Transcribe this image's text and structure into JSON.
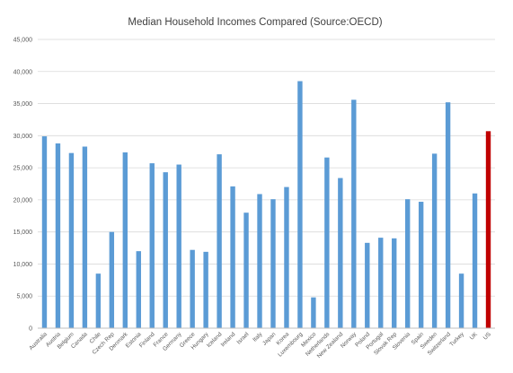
{
  "chart_data": {
    "type": "bar",
    "title": "Median Household Incomes Compared (Source:OECD)",
    "xlabel": "",
    "ylabel": "",
    "ylim": [
      0,
      45000
    ],
    "yticks": [
      "0",
      "5,000",
      "10,000",
      "15,000",
      "20,000",
      "25,000",
      "30,000",
      "35,000",
      "40,000",
      "45,000"
    ],
    "ytick_values": [
      0,
      5000,
      10000,
      15000,
      20000,
      25000,
      30000,
      35000,
      40000,
      45000
    ],
    "grid": true,
    "legend": "none",
    "categories": [
      "Australia",
      "Austria",
      "Belgium",
      "Canada",
      "Chile",
      "Czech Rep",
      "Denmark",
      "Estonia",
      "Finland",
      "France",
      "Germany",
      "Greece",
      "Hungary",
      "Iceland",
      "Ireland",
      "Israel",
      "Italy",
      "Japan",
      "Korea",
      "Luxembourg",
      "Mexico",
      "Netherlands",
      "New Zealand",
      "Norway",
      "Poland",
      "Portugal",
      "Slovak Rep",
      "Slovenia",
      "Spain",
      "Sweden",
      "Switzerland",
      "Turkey",
      "UK",
      "US"
    ],
    "values": [
      29900,
      28800,
      27300,
      28300,
      8500,
      15000,
      27400,
      12000,
      25700,
      24300,
      25500,
      12200,
      11900,
      27100,
      22100,
      18000,
      20900,
      20100,
      22000,
      38500,
      4800,
      26600,
      23400,
      35600,
      13300,
      14100,
      14000,
      20100,
      19700,
      27200,
      35200,
      8500,
      21000,
      30700
    ],
    "colors": {
      "bar": "#5b9bd5",
      "highlight": "#c00000",
      "highlight_category": "US"
    }
  }
}
